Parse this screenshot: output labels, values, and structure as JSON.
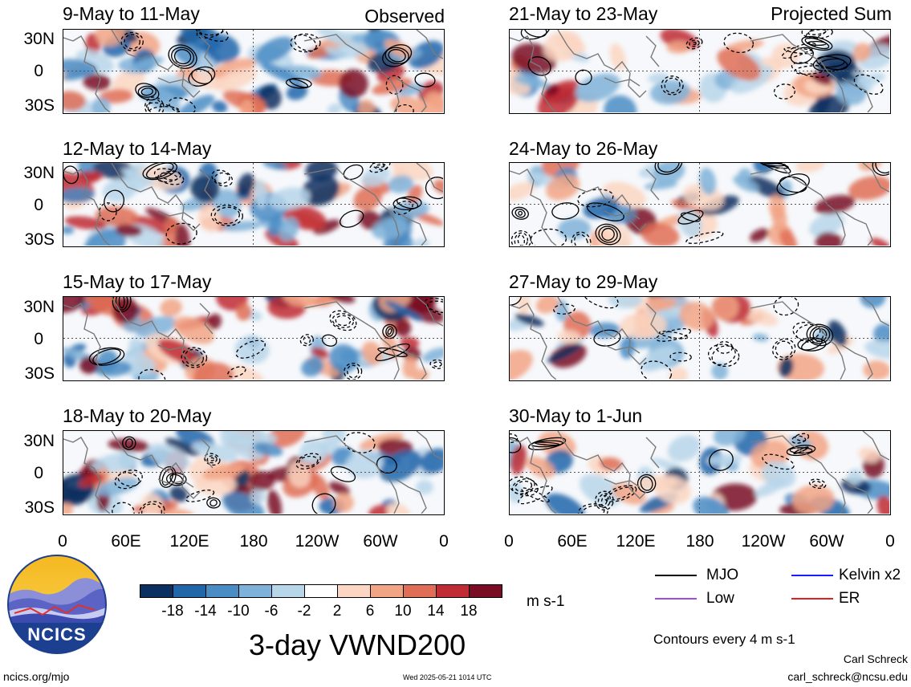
{
  "figure": {
    "title": "3-day VWND200",
    "observed_label": "Observed",
    "projected_label": "Projected Sum",
    "units": "m s-1",
    "contour_note": "Contours every 4 m s-1",
    "author": "Carl Schreck",
    "email": "carl_schreck@ncsu.edu",
    "url": "ncics.org/mjo",
    "timestamp": "Wed 2025-05-21 1014 UTC",
    "logo_text": "NCICS"
  },
  "panels": [
    {
      "period": "9-May to 11-May"
    },
    {
      "period": "12-May to 14-May"
    },
    {
      "period": "15-May to 17-May"
    },
    {
      "period": "18-May to 20-May"
    },
    {
      "period": "21-May to 23-May"
    },
    {
      "period": "24-May to 26-May"
    },
    {
      "period": "27-May to 29-May"
    },
    {
      "period": "30-May to 1-Jun"
    }
  ],
  "axes": {
    "lat_ticks": [
      "30N",
      "0",
      "30S"
    ],
    "lon_ticks": [
      "0",
      "60E",
      "120E",
      "180",
      "120W",
      "60W",
      "0"
    ]
  },
  "colorbar": {
    "labels": [
      "-18",
      "-14",
      "-10",
      "-6",
      "-2",
      "2",
      "6",
      "10",
      "14",
      "18"
    ],
    "colors": [
      "#0b2f5f",
      "#2266aa",
      "#4a8cc4",
      "#7fb2d8",
      "#b8d6ea",
      "#ffffff",
      "#fcd6c2",
      "#f2a585",
      "#e06e56",
      "#c02c33",
      "#7a0d24"
    ]
  },
  "legend": [
    {
      "label": "MJO",
      "color": "#000000"
    },
    {
      "label": "Kelvin x2",
      "color": "#1a1aff"
    },
    {
      "label": "Low",
      "color": "#a24be0"
    },
    {
      "label": "ER",
      "color": "#e02020"
    }
  ]
}
